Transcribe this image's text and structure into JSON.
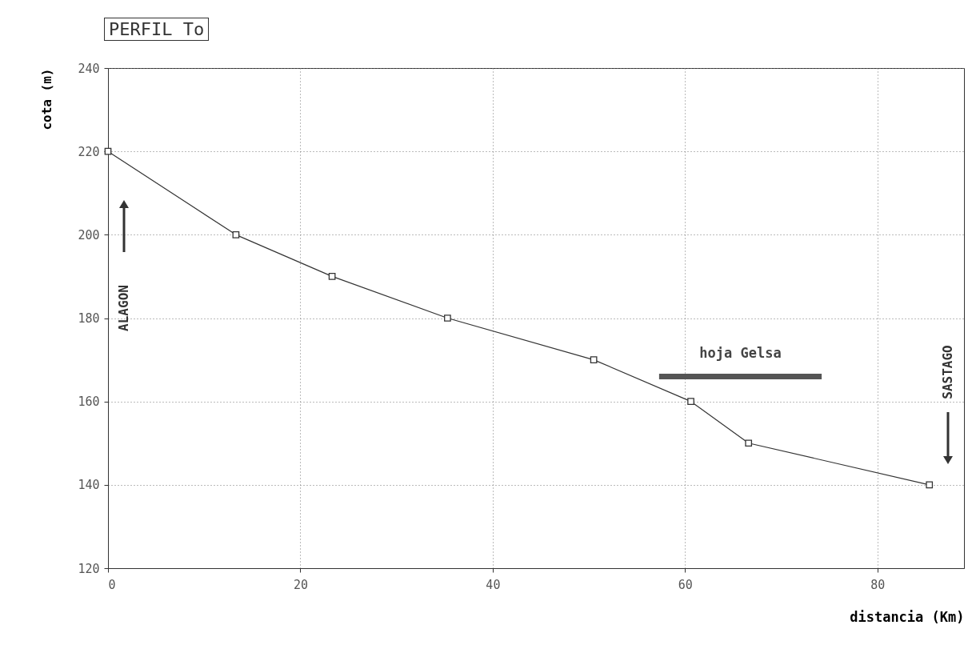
{
  "chart_data": {
    "type": "line",
    "title": "PERFIL To",
    "xlabel": "distancia (Km)",
    "ylabel": "cota (m)",
    "x": [
      0,
      13.3,
      23.3,
      35.3,
      50.5,
      60.6,
      66.6,
      85.4
    ],
    "series": [
      {
        "color": "#333333",
        "values": [
          220,
          200,
          190,
          180,
          170,
          160,
          150,
          140
        ]
      },
      {
        "name": "hoja Gelsa",
        "color": "#555555",
        "x": [
          57.3,
          74.2
        ],
        "values": [
          166,
          166
        ],
        "marker": "none"
      }
    ],
    "xlim": [
      0,
      89
    ],
    "ylim": [
      120,
      240
    ],
    "xticks": [
      0,
      20,
      40,
      60,
      80
    ],
    "yticks": [
      120,
      140,
      160,
      180,
      200,
      220,
      240
    ],
    "grid": true,
    "marker": "square",
    "line_style": "solid",
    "annotations": [
      "ALAGON",
      "SASTAGO"
    ]
  }
}
